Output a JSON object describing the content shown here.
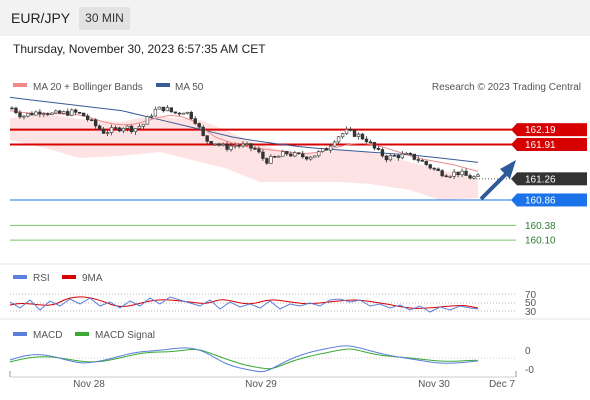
{
  "header": {
    "symbol": "EUR/JPY",
    "timeframe": "30 MIN",
    "datetime": "Thursday, November 30, 2023 6:57:35 AM CET"
  },
  "legend": {
    "ma20": "MA 20 + Bollinger Bands",
    "ma50": "MA 50",
    "credit": "Research © 2023 Trading Central",
    "rsi": "RSI",
    "rsi_ma": "9MA",
    "macd": "MACD",
    "macd_signal": "MACD Signal"
  },
  "colors": {
    "ma20": "#f08a8a",
    "ma50": "#3a5a98",
    "resistance": "#d60000",
    "current": "#333333",
    "pivot": "#1a73e8",
    "support": "#7ac46a",
    "arrow": "#2f5b9a",
    "rsi": "#5b7fdc",
    "rsi_ma": "#d60000",
    "macd": "#5b7fdc",
    "macd_signal": "#3aaa35"
  },
  "chart_data": {
    "type": "candlestick",
    "y_range": [
      159.8,
      162.6
    ],
    "levels": [
      {
        "label": "162.19",
        "value": 162.19,
        "kind": "resistance"
      },
      {
        "label": "161.91",
        "value": 161.91,
        "kind": "resistance"
      },
      {
        "label": "161.26",
        "value": 161.26,
        "kind": "current"
      },
      {
        "label": "160.86",
        "value": 160.86,
        "kind": "pivot"
      },
      {
        "label": "160.38",
        "value": 160.38,
        "kind": "support"
      },
      {
        "label": "160.10",
        "value": 160.1,
        "kind": "support"
      }
    ],
    "close_path": [
      162.6,
      162.45,
      162.5,
      162.55,
      162.48,
      162.5,
      162.52,
      162.47,
      162.3,
      162.15,
      162.18,
      162.25,
      162.2,
      162.3,
      162.55,
      162.6,
      162.5,
      162.55,
      162.4,
      162.0,
      161.95,
      161.85,
      161.9,
      161.88,
      161.82,
      161.6,
      161.65,
      161.75,
      161.7,
      161.68,
      161.72,
      161.82,
      162.05,
      162.15,
      162.1,
      162.0,
      161.78,
      161.66,
      161.7,
      161.7,
      161.64,
      161.52,
      161.4,
      161.35,
      161.38,
      161.3,
      161.28
    ],
    "ma20_path": [
      162.55,
      162.52,
      162.5,
      162.5,
      162.49,
      162.48,
      162.47,
      162.42,
      162.35,
      162.3,
      162.28,
      162.3,
      162.36,
      162.42,
      162.46,
      162.44,
      162.36,
      162.2,
      162.05,
      161.97,
      161.9,
      161.86,
      161.83,
      161.8,
      161.78,
      161.75,
      161.74,
      161.76,
      161.82,
      161.88,
      161.92,
      161.93,
      161.9,
      161.84,
      161.77,
      161.7,
      161.64,
      161.6,
      161.56,
      161.52,
      161.46,
      161.4
    ],
    "ma50_path": [
      162.8,
      162.75,
      162.7,
      162.65,
      162.6,
      162.55,
      162.45,
      162.35,
      162.25,
      162.15,
      162.05,
      161.98,
      161.92,
      161.87,
      161.83,
      161.8,
      161.77,
      161.74,
      161.71,
      161.67,
      161.62,
      161.57
    ],
    "x_labels": [
      "Nov 28",
      "Nov 29",
      "Nov 30",
      "Dec 7"
    ],
    "rsi": {
      "levels": [
        "70",
        "50",
        "30"
      ]
    },
    "macd": {
      "levels": [
        "0",
        "-0"
      ]
    }
  }
}
